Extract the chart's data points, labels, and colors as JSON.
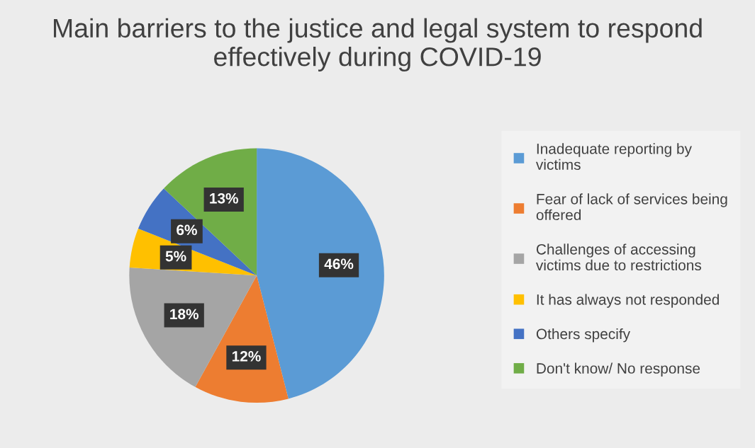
{
  "chart_data": {
    "type": "pie",
    "title": "Main barriers to the justice and legal system to respond effectively during COVID-19",
    "categories": [
      "Inadequate reporting by victims",
      "Fear of lack of services being offered",
      "Challenges of accessing victims due to restrictions",
      "It has always not responded",
      "Others specify",
      "Don't know/ No response"
    ],
    "values": [
      46,
      12,
      18,
      5,
      6,
      13
    ],
    "value_labels": [
      "46%",
      "12%",
      "18%",
      "5%",
      "6%",
      "13%"
    ],
    "colors": [
      "#5b9bd5",
      "#ed7d31",
      "#a5a5a5",
      "#ffc000",
      "#4472c4",
      "#70ad47"
    ],
    "legend": "right"
  }
}
